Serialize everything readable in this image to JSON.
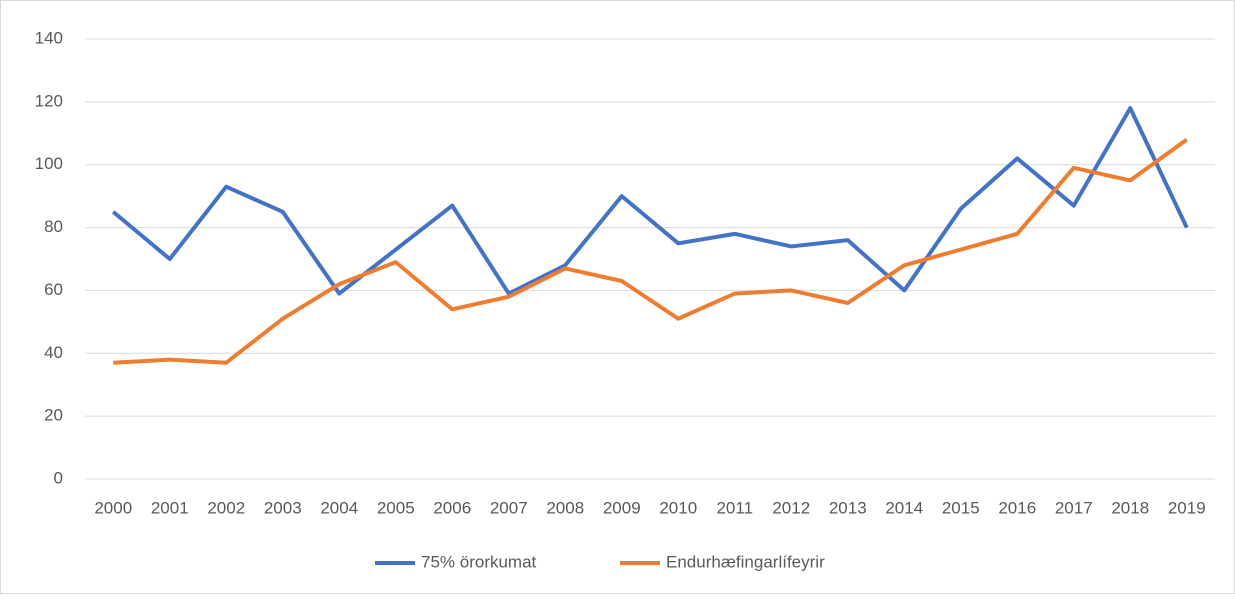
{
  "chart_data": {
    "type": "line",
    "categories": [
      "2000",
      "2001",
      "2002",
      "2003",
      "2004",
      "2005",
      "2006",
      "2007",
      "2008",
      "2009",
      "2010",
      "2011",
      "2012",
      "2013",
      "2014",
      "2015",
      "2016",
      "2017",
      "2018",
      "2019"
    ],
    "series": [
      {
        "name": "75% örorkumat",
        "color": "#4472c4",
        "values": [
          85,
          70,
          93,
          85,
          59,
          73,
          87,
          59,
          68,
          90,
          75,
          78,
          74,
          76,
          60,
          86,
          102,
          87,
          118,
          80
        ]
      },
      {
        "name": "Endurhæfingarlífeyrir",
        "color": "#ed7d31",
        "values": [
          37,
          38,
          37,
          51,
          62,
          69,
          54,
          58,
          67,
          63,
          51,
          59,
          60,
          56,
          68,
          73,
          78,
          99,
          95,
          108
        ]
      }
    ],
    "ylim": [
      0,
      140
    ],
    "yticks": [
      0,
      20,
      40,
      60,
      80,
      100,
      120,
      140
    ],
    "grid": true,
    "legend": "bottom"
  }
}
